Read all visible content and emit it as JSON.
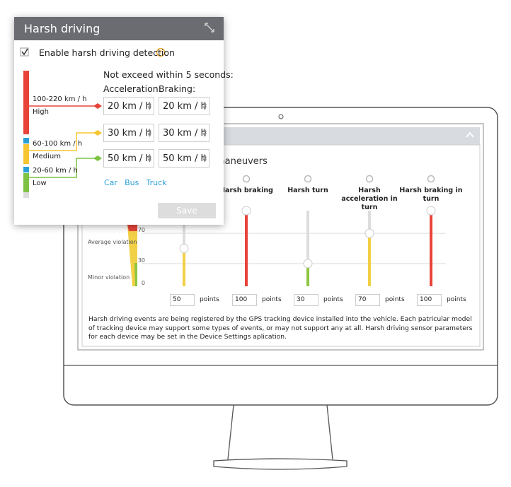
{
  "popup": {
    "title": "Harsh driving",
    "enable_label": "Enable harsh driving detection",
    "enabled": true,
    "heading": "Not exceed within 5 seconds:",
    "columns": [
      "Acceleration:",
      "Braking:"
    ],
    "levels": [
      {
        "range": "100-220 km / h",
        "name": "High",
        "acceleration": "20 km / h",
        "braking": "20 km / h",
        "color": "#e8443a"
      },
      {
        "range": "60-100 km / h",
        "name": "Medium",
        "acceleration": "30 km / h",
        "braking": "30 km / h",
        "color": "#f7c531"
      },
      {
        "range": "20-60 km / h",
        "name": "Low",
        "acceleration": "50 km / h",
        "braking": "50 km / h",
        "color": "#7dc242"
      }
    ],
    "vehicles": [
      "Car",
      "Bus",
      "Truck"
    ],
    "save": "Save"
  },
  "screen": {
    "heading": "maneuvers",
    "scale": [
      70,
      30,
      0
    ],
    "levels": [
      "Average violation",
      "Minor violation"
    ],
    "points_label": "points",
    "columns": [
      {
        "label": null,
        "points": 50
      },
      {
        "label": "Harsh braking",
        "points": 100
      },
      {
        "label": "Harsh turn",
        "points": 30
      },
      {
        "label": "Harsh acceleration in turn",
        "points": 70
      },
      {
        "label": "Harsh braking in turn",
        "points": 100
      }
    ],
    "note": "Harsh driving events are being registered by the GPS tracking device installed into the vehicle. Each patricular model of tracking device may support some types of events, or may not support any at all. Harsh driving sensor parameters for each device may be set in the Device Settings aplication."
  }
}
